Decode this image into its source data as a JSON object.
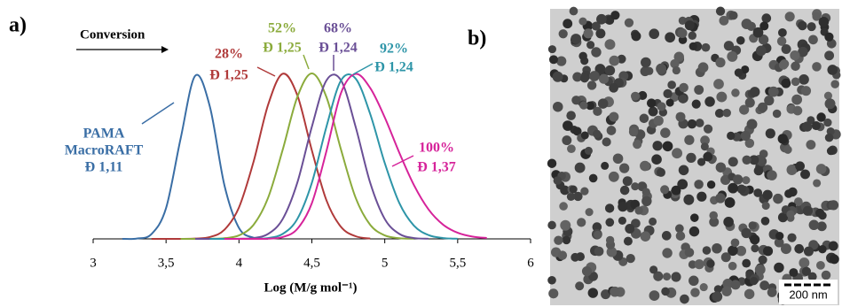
{
  "panel_labels": [
    "a)",
    "b)"
  ],
  "chart_data": {
    "type": "line",
    "xlabel": "Log (M/g mol⁻¹)",
    "arrow_label": "Conversion",
    "x": [
      3.2,
      3.3,
      3.4,
      3.5,
      3.6,
      3.7,
      3.8,
      3.9,
      4.0,
      4.1,
      4.2,
      4.3,
      4.4,
      4.5,
      4.6,
      4.7,
      4.8,
      4.9,
      5.0,
      5.1,
      5.2,
      5.3,
      5.4,
      5.5,
      5.6,
      5.7
    ],
    "xlim": [
      3,
      6
    ],
    "xticks": [
      3,
      {
        "value": 3.5,
        "label": "3,5"
      },
      4,
      {
        "value": 4.5,
        "label": "4,5"
      },
      5,
      {
        "value": 5.5,
        "label": "5,5"
      },
      6
    ],
    "ylim": [
      0,
      1
    ],
    "series": [
      {
        "name": "PAMA MacroRAFT",
        "color": "#3a6ea5",
        "values": [
          0,
          0.002,
          0.029,
          0.186,
          0.607,
          0.986,
          0.801,
          0.325,
          0.066,
          0.007,
          0,
          null,
          null,
          null,
          null,
          null,
          null,
          null,
          null,
          null,
          null,
          null,
          null,
          null,
          null,
          null
        ]
      },
      {
        "name": "28%",
        "color": "#b03a3a",
        "values": [
          null,
          null,
          0,
          0,
          0,
          0.002,
          0.011,
          0.055,
          0.19,
          0.466,
          0.811,
          0.998,
          0.869,
          0.535,
          0.233,
          0.072,
          0.016,
          0.002,
          null,
          null,
          null,
          null,
          null,
          null,
          null,
          null
        ]
      },
      {
        "name": "52%",
        "color": "#8bab3c",
        "values": [
          null,
          null,
          null,
          null,
          0,
          0,
          0.001,
          0.004,
          0.021,
          0.085,
          0.249,
          0.539,
          0.857,
          1,
          0.857,
          0.539,
          0.249,
          0.085,
          0.021,
          0.004,
          0.001,
          null,
          null,
          null,
          null,
          null
        ]
      },
      {
        "name": "68%",
        "color": "#6a4f96",
        "values": [
          null,
          null,
          null,
          null,
          null,
          0,
          0,
          0,
          0.001,
          0.005,
          0.03,
          0.12,
          0.339,
          0.678,
          0.958,
          0.958,
          0.678,
          0.339,
          0.12,
          0.03,
          0.005,
          0.001,
          null,
          null,
          null,
          null
        ]
      },
      {
        "name": "92%",
        "color": "#2e95a8",
        "values": [
          null,
          null,
          null,
          null,
          null,
          null,
          0,
          0,
          0,
          0.001,
          0.005,
          0.03,
          0.12,
          0.339,
          0.678,
          0.958,
          0.969,
          0.755,
          0.458,
          0.216,
          0.08,
          0.023,
          0.005,
          0.001,
          null,
          null
        ]
      },
      {
        "name": "100%",
        "color": "#d6239a",
        "values": [
          null,
          null,
          null,
          null,
          null,
          null,
          null,
          0,
          0,
          0,
          0.001,
          0.011,
          0.06,
          0.216,
          0.531,
          0.882,
          0.997,
          0.912,
          0.734,
          0.52,
          0.325,
          0.178,
          0.086,
          0.037,
          0.014,
          0.005
        ]
      }
    ],
    "annotations": [
      {
        "lines": [
          "PAMA",
          "MacroRAFT",
          "Đ 1,11"
        ],
        "color": "#3a6ea5"
      },
      {
        "lines": [
          "28%",
          "Đ 1,25"
        ],
        "color": "#b03a3a"
      },
      {
        "lines": [
          "52%",
          "Đ 1,25"
        ],
        "color": "#8bab3c"
      },
      {
        "lines": [
          "68%",
          "Đ 1,24"
        ],
        "color": "#6a4f96"
      },
      {
        "lines": [
          "92%",
          "Đ 1,24"
        ],
        "color": "#2e95a8"
      },
      {
        "lines": [
          "100%",
          "Đ 1,37"
        ],
        "color": "#d6239a"
      }
    ]
  },
  "image": {
    "scale_bar": "200 nm"
  }
}
